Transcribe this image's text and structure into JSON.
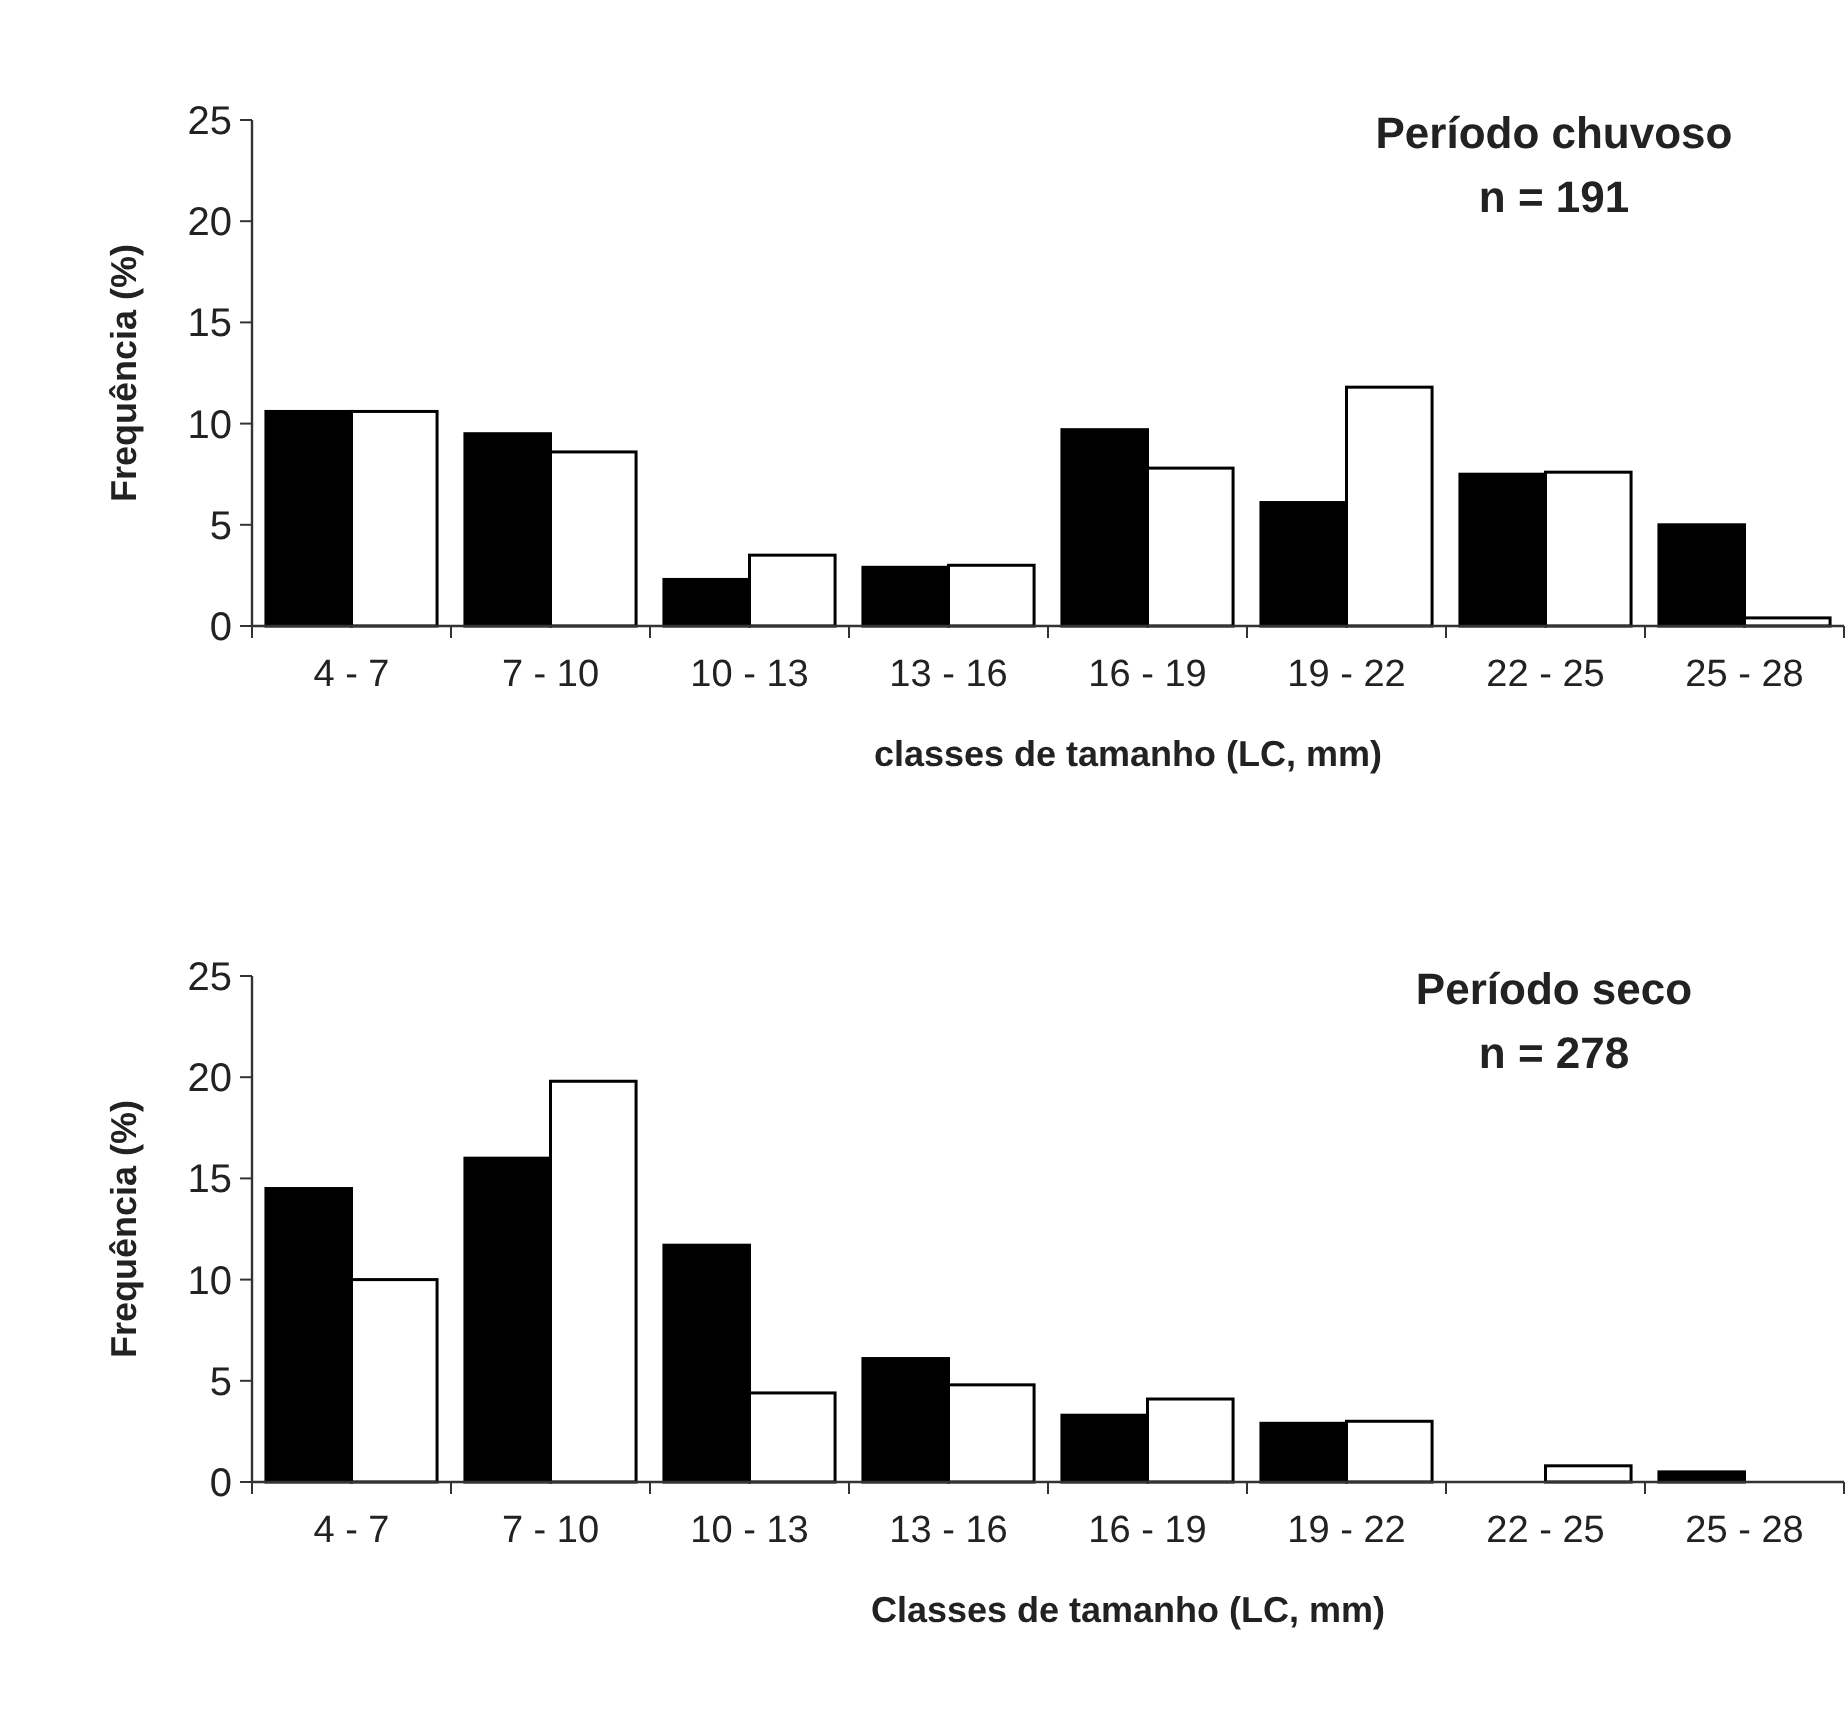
{
  "chart_data": [
    {
      "type": "bar",
      "title": "Período chuvoso",
      "subtitle": "n = 191",
      "xlabel": "classes de tamanho (LC, mm)",
      "ylabel": "Frequência (%)",
      "categories": [
        "4 - 7",
        "7 - 10",
        "10 - 13",
        "13 - 16",
        "16 - 19",
        "19 - 22",
        "22 - 25",
        "25 - 28"
      ],
      "series": [
        {
          "color": "#000000",
          "values": [
            10.6,
            9.5,
            2.3,
            2.9,
            9.7,
            6.1,
            7.5,
            5.0
          ]
        },
        {
          "color": "#ffffff",
          "values": [
            10.6,
            8.6,
            3.5,
            3.0,
            7.8,
            11.8,
            7.6,
            0.4
          ]
        }
      ],
      "ylim": [
        0,
        25
      ],
      "yticks": [
        0,
        5,
        10,
        15,
        20,
        25
      ],
      "grid": false
    },
    {
      "type": "bar",
      "title": "Período seco",
      "subtitle": "n = 278",
      "xlabel": "Classes de tamanho (LC, mm)",
      "ylabel": "Frequência (%)",
      "categories": [
        "4 - 7",
        "7 - 10",
        "10 - 13",
        "13 - 16",
        "16 - 19",
        "19 - 22",
        "22 - 25",
        "25 - 28"
      ],
      "series": [
        {
          "color": "#000000",
          "values": [
            14.5,
            16.0,
            11.7,
            6.1,
            3.3,
            2.9,
            0,
            0.5
          ]
        },
        {
          "color": "#ffffff",
          "values": [
            10.0,
            19.8,
            4.4,
            4.8,
            4.1,
            3.0,
            0.8,
            0
          ]
        }
      ],
      "ylim": [
        0,
        25
      ],
      "yticks": [
        0,
        5,
        10,
        15,
        20,
        25
      ],
      "grid": false
    }
  ]
}
